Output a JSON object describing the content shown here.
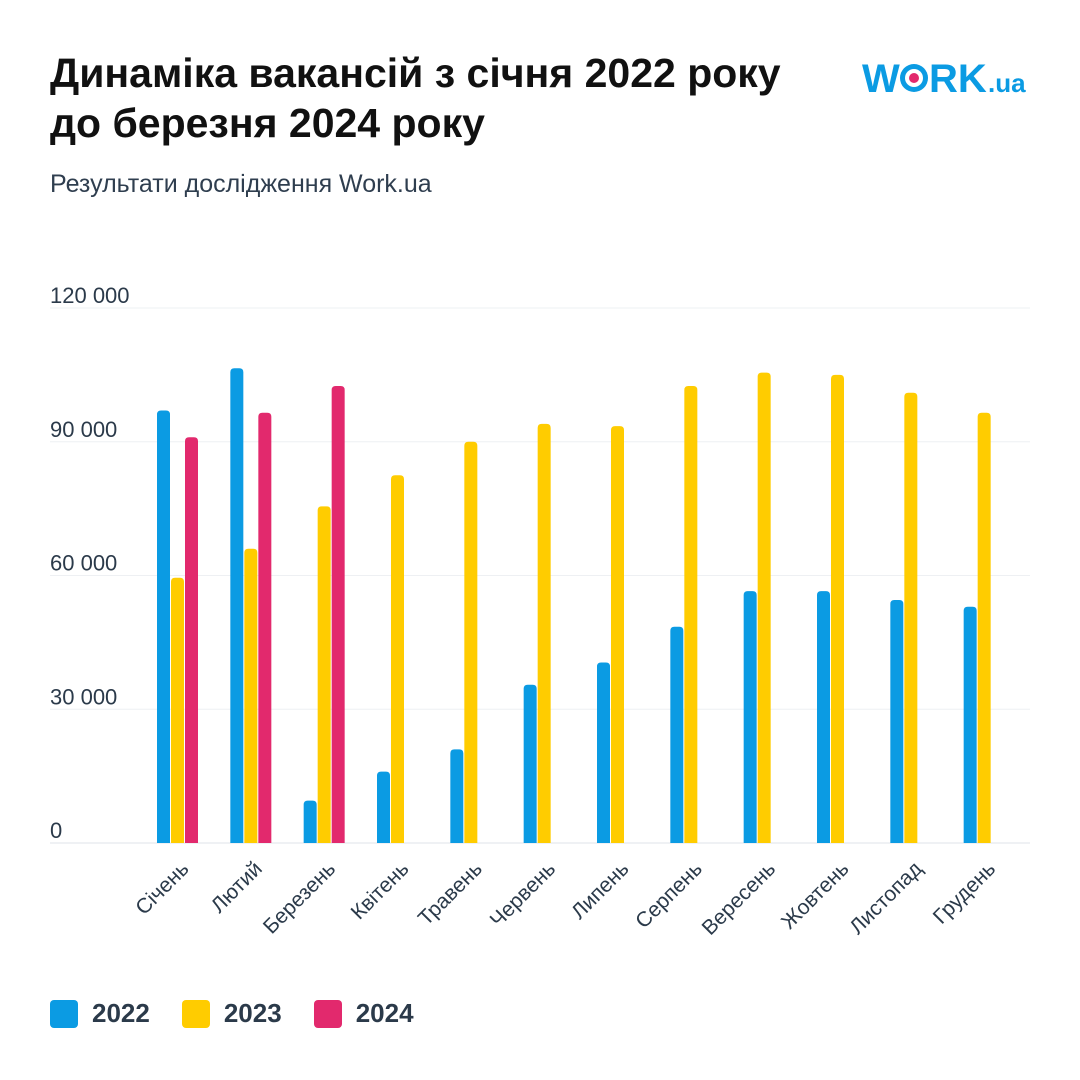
{
  "header": {
    "title": "Динаміка вакансій з січня 2022 року до березня 2024 року",
    "subtitle": "Результати дослідження Work.ua"
  },
  "logo": {
    "text_left": "W",
    "text_mid": "RK",
    "text_suffix": ".ua",
    "color_blue": "#0b9be3",
    "color_pink": "#e2296d"
  },
  "chart_data": {
    "type": "bar",
    "categories": [
      "Січень",
      "Лютий",
      "Березень",
      "Квітень",
      "Травень",
      "Червень",
      "Липень",
      "Серпень",
      "Вересень",
      "Жовтень",
      "Листопад",
      "Грудень"
    ],
    "series": [
      {
        "name": "2022",
        "color": "#0b9be3",
        "values": [
          97000,
          106500,
          9500,
          16000,
          21000,
          35500,
          40500,
          48500,
          56500,
          56500,
          54500,
          53000
        ]
      },
      {
        "name": "2023",
        "color": "#ffcc00",
        "values": [
          59500,
          66000,
          75500,
          82500,
          90000,
          94000,
          93500,
          102500,
          105500,
          105000,
          101000,
          96500
        ]
      },
      {
        "name": "2024",
        "color": "#e2296d",
        "values": [
          91000,
          96500,
          102500,
          null,
          null,
          null,
          null,
          null,
          null,
          null,
          null,
          null
        ]
      }
    ],
    "yticks": [
      "120 000",
      "90 000",
      "60 000",
      "30 000",
      "0"
    ],
    "ytick_values": [
      120000,
      90000,
      60000,
      30000,
      0
    ],
    "ylim": [
      0,
      120000
    ],
    "grid": true,
    "legend_placement": "bottom-left"
  }
}
